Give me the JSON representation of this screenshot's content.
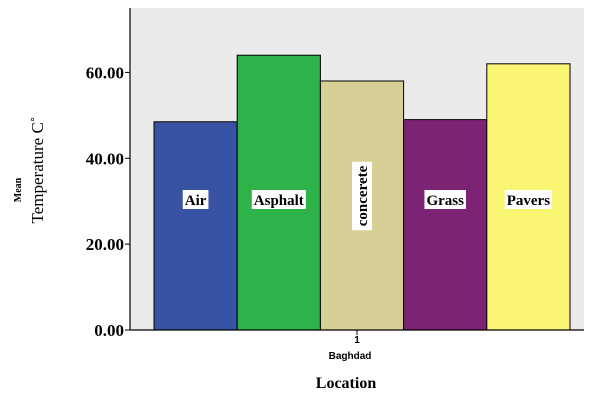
{
  "chart_data": {
    "type": "bar",
    "categories": [
      "1"
    ],
    "category_title": "Baghdad",
    "xlabel": "Location",
    "ylabel_prefix": "Mean",
    "ylabel": "Temperature C˚",
    "ylim": [
      0,
      75
    ],
    "y_ticks": [
      "0.00",
      "20.00",
      "40.00",
      "60.00"
    ],
    "y_tick_values": [
      0,
      20,
      40,
      60
    ],
    "grid": false,
    "series": [
      {
        "name": "Air",
        "values": [
          48.5
        ],
        "color": "#3953a4"
      },
      {
        "name": "Asphalt",
        "values": [
          64.0
        ],
        "color": "#2db34a"
      },
      {
        "name": "concerete",
        "values": [
          58.0
        ],
        "color": "#d6cf96"
      },
      {
        "name": "Grass",
        "values": [
          49.0
        ],
        "color": "#7d2373"
      },
      {
        "name": "Pavers",
        "values": [
          62.0
        ],
        "color": "#faf573"
      }
    ],
    "plot_background": "#ebebeb"
  }
}
